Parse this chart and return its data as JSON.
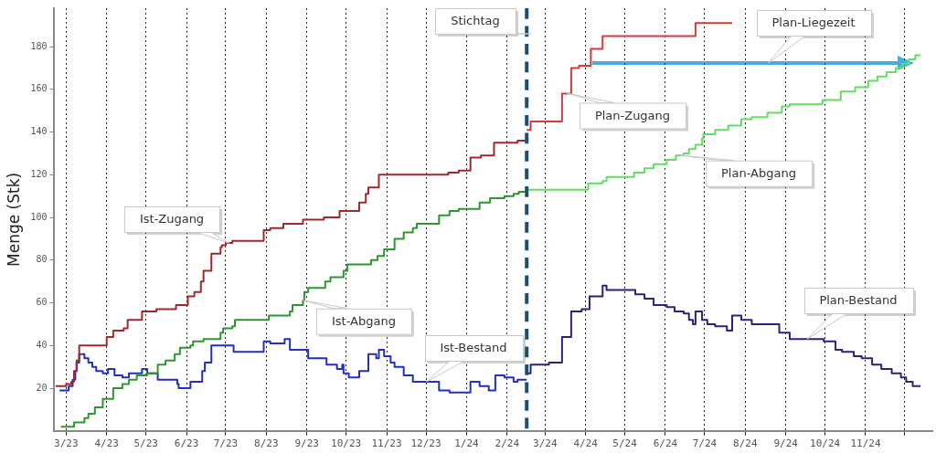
{
  "chart_data": {
    "type": "step",
    "ylabel": "Menge (Stk)",
    "annotations": [
      "Plan-Liegezeit"
    ],
    "xlim": [
      "2023-02-20",
      "2024-12-22"
    ],
    "xticks": [
      {
        "value": "2023-03",
        "label": "3/23"
      },
      {
        "value": "2023-04",
        "label": "4/23"
      },
      {
        "value": "2023-05",
        "label": "5/23"
      },
      {
        "value": "2023-06",
        "label": "6/23"
      },
      {
        "value": "2023-07",
        "label": "7/23"
      },
      {
        "value": "2023-08",
        "label": "8/23"
      },
      {
        "value": "2023-09",
        "label": "9/23"
      },
      {
        "value": "2023-10",
        "label": "10/23"
      },
      {
        "value": "2023-11",
        "label": "11/23"
      },
      {
        "value": "2023-12",
        "label": "12/23"
      },
      {
        "value": "2024-01",
        "label": "1/24"
      },
      {
        "value": "2024-02",
        "label": "2/24"
      },
      {
        "value": "2024-03",
        "label": "3/24"
      },
      {
        "value": "2024-04",
        "label": "4/24"
      },
      {
        "value": "2024-05",
        "label": "5/24"
      },
      {
        "value": "2024-06",
        "label": "6/24"
      },
      {
        "value": "2024-07",
        "label": "7/24"
      },
      {
        "value": "2024-08",
        "label": "8/24"
      },
      {
        "value": "2024-09",
        "label": "9/24"
      },
      {
        "value": "2024-10",
        "label": "10/24"
      },
      {
        "value": "2024-11",
        "label": "11/24"
      },
      {
        "value": "2024-12",
        "label": null
      }
    ],
    "ylim": [
      0,
      198
    ],
    "yticks": [
      20,
      40,
      60,
      80,
      100,
      120,
      140,
      160,
      180
    ],
    "grid": "x",
    "legend": false,
    "marker": "none",
    "ref_lines": [
      {
        "axis": "x",
        "value": "2024-02-16",
        "label": "Stichtag",
        "color": "#1d4f6e",
        "line_style": "dashed"
      }
    ],
    "series": [
      {
        "name": "Ist-Zugang",
        "color": "#a3282c",
        "x": [
          "2023-02-21",
          "2023-03-01",
          "2023-03-05",
          "2023-03-07",
          "2023-03-09",
          "2023-03-11",
          "2023-04-01",
          "2023-04-06",
          "2023-04-14",
          "2023-04-17",
          "2023-04-28",
          "2023-05-09",
          "2023-05-24",
          "2023-06-02",
          "2023-06-07",
          "2023-06-12",
          "2023-06-14",
          "2023-06-20",
          "2023-06-27",
          "2023-06-28",
          "2023-07-01",
          "2023-07-06",
          "2023-07-30",
          "2023-08-04",
          "2023-08-14",
          "2023-08-29",
          "2023-09-14",
          "2023-09-26",
          "2023-10-11",
          "2023-10-16",
          "2023-10-18",
          "2023-10-26",
          "2023-12-18",
          "2023-12-26",
          "2024-01-04",
          "2024-01-12",
          "2024-01-22",
          "2024-02-09",
          "2024-02-16"
        ],
        "values": [
          21,
          22,
          23,
          28,
          33,
          40,
          44,
          47,
          48,
          52,
          56,
          57,
          59,
          63,
          65,
          70,
          75,
          83,
          86,
          87,
          88,
          89,
          94,
          95,
          97,
          99,
          100,
          103,
          107,
          111,
          114,
          120,
          121,
          122,
          128,
          129,
          135,
          136,
          136
        ]
      },
      {
        "name": "Ist-Abgang",
        "color": "#2f962f",
        "x": [
          "2023-02-25",
          "2023-03-07",
          "2023-03-15",
          "2023-03-18",
          "2023-03-23",
          "2023-03-29",
          "2023-04-06",
          "2023-04-13",
          "2023-04-18",
          "2023-04-24",
          "2023-05-02",
          "2023-05-10",
          "2023-05-16",
          "2023-05-23",
          "2023-05-27",
          "2023-06-04",
          "2023-06-06",
          "2023-06-14",
          "2023-06-27",
          "2023-06-29",
          "2023-07-06",
          "2023-07-08",
          "2023-08-03",
          "2023-08-19",
          "2023-08-21",
          "2023-08-29",
          "2023-08-30",
          "2023-09-02",
          "2023-09-15",
          "2023-09-19",
          "2023-09-29",
          "2023-10-02",
          "2023-10-20",
          "2023-10-25",
          "2023-10-30",
          "2023-11-07",
          "2023-11-14",
          "2023-11-21",
          "2023-11-24",
          "2023-12-11",
          "2023-12-19",
          "2023-12-26",
          "2024-01-11",
          "2024-01-19",
          "2024-01-30",
          "2024-02-06",
          "2024-02-10",
          "2024-02-16"
        ],
        "values": [
          2,
          4,
          6,
          8,
          11,
          15,
          20,
          22,
          24,
          26,
          27,
          31,
          33,
          36,
          39,
          40,
          42,
          43,
          46,
          48,
          49,
          52,
          54,
          56,
          59,
          61,
          65,
          67,
          70,
          72,
          75,
          78,
          80,
          82,
          85,
          90,
          93,
          95,
          97,
          101,
          103,
          104,
          107,
          109,
          110,
          111,
          112,
          112
        ]
      },
      {
        "name": "Ist-Bestand",
        "color": "#2230c0",
        "x": [
          "2023-02-24",
          "2023-03-03",
          "2023-03-06",
          "2023-03-08",
          "2023-03-09",
          "2023-03-11",
          "2023-03-15",
          "2023-03-18",
          "2023-03-21",
          "2023-03-24",
          "2023-03-29",
          "2023-04-02",
          "2023-04-07",
          "2023-04-13",
          "2023-04-18",
          "2023-04-28",
          "2023-05-02",
          "2023-05-10",
          "2023-05-25",
          "2023-05-26",
          "2023-06-04",
          "2023-06-13",
          "2023-06-15",
          "2023-06-20",
          "2023-07-07",
          "2023-07-30",
          "2023-08-04",
          "2023-08-15",
          "2023-08-19",
          "2023-09-02",
          "2023-09-16",
          "2023-09-24",
          "2023-09-28",
          "2023-09-29",
          "2023-10-03",
          "2023-10-11",
          "2023-10-18",
          "2023-10-24",
          "2023-10-26",
          "2023-10-30",
          "2023-11-04",
          "2023-11-07",
          "2023-11-14",
          "2023-11-21",
          "2023-12-11",
          "2023-12-19",
          "2024-01-04",
          "2024-01-11",
          "2024-01-18",
          "2024-01-23",
          "2024-01-30",
          "2024-02-06",
          "2024-02-09",
          "2024-02-16"
        ],
        "values": [
          19,
          21,
          24,
          28,
          32,
          36,
          34,
          32,
          30,
          28,
          27,
          29,
          26,
          25,
          27,
          29,
          27,
          24,
          22,
          20,
          23,
          28,
          32,
          40,
          37,
          42,
          41,
          43,
          38,
          34,
          31,
          29,
          31,
          27,
          25,
          28,
          36,
          34,
          38,
          35,
          32,
          30,
          26,
          23,
          19,
          18,
          23,
          21,
          19,
          26,
          25,
          23,
          24,
          24
        ]
      },
      {
        "name": "Plan-Zugang",
        "color": "#d63a3a",
        "x": [
          "2024-02-16",
          "2024-02-19",
          "2024-03-14",
          "2024-03-21",
          "2024-03-27",
          "2024-04-05",
          "2024-04-14",
          "2024-06-24",
          "2024-07-22"
        ],
        "values": [
          141,
          145,
          158,
          170,
          171,
          179,
          185,
          191,
          191
        ]
      },
      {
        "name": "Plan-Abgang",
        "color": "#62de62",
        "x": [
          "2024-02-16",
          "2024-04-03",
          "2024-04-14",
          "2024-04-17",
          "2024-05-08",
          "2024-05-16",
          "2024-05-23",
          "2024-06-02",
          "2024-06-09",
          "2024-06-15",
          "2024-06-19",
          "2024-06-24",
          "2024-06-29",
          "2024-06-30",
          "2024-07-09",
          "2024-07-19",
          "2024-07-29",
          "2024-08-06",
          "2024-08-18",
          "2024-08-29",
          "2024-09-04",
          "2024-09-29",
          "2024-10-13",
          "2024-10-24",
          "2024-11-03",
          "2024-11-10",
          "2024-11-17",
          "2024-11-24",
          "2024-11-29",
          "2024-12-04",
          "2024-12-09",
          "2024-12-13"
        ],
        "values": [
          113,
          116,
          117,
          119,
          121,
          123,
          125,
          127,
          129,
          130,
          132,
          134,
          137,
          139,
          141,
          143,
          146,
          147,
          149,
          152,
          153,
          155,
          159,
          161,
          164,
          166,
          168,
          170,
          172,
          174,
          176,
          176
        ]
      },
      {
        "name": "Plan-Bestand",
        "color": "#27247c",
        "x": [
          "2024-02-16",
          "2024-02-19",
          "2024-03-04",
          "2024-03-14",
          "2024-03-21",
          "2024-03-29",
          "2024-04-04",
          "2024-04-14",
          "2024-04-17",
          "2024-05-09",
          "2024-05-16",
          "2024-05-23",
          "2024-06-02",
          "2024-06-08",
          "2024-06-15",
          "2024-06-19",
          "2024-06-22",
          "2024-06-24",
          "2024-06-29",
          "2024-07-03",
          "2024-07-09",
          "2024-07-18",
          "2024-07-22",
          "2024-07-29",
          "2024-08-06",
          "2024-08-27",
          "2024-09-04",
          "2024-09-30",
          "2024-10-09",
          "2024-10-14",
          "2024-10-23",
          "2024-10-29",
          "2024-11-06",
          "2024-11-13",
          "2024-11-21",
          "2024-11-28",
          "2024-12-02",
          "2024-12-07",
          "2024-12-13"
        ],
        "values": [
          27,
          31,
          32,
          44,
          56,
          57,
          63,
          68,
          66,
          64,
          62,
          59,
          58,
          56,
          55,
          52,
          50,
          56,
          52,
          50,
          49,
          47,
          54,
          52,
          50,
          46,
          43,
          42,
          38,
          37,
          35,
          34,
          31,
          29,
          27,
          25,
          23,
          21,
          21
        ]
      }
    ]
  }
}
